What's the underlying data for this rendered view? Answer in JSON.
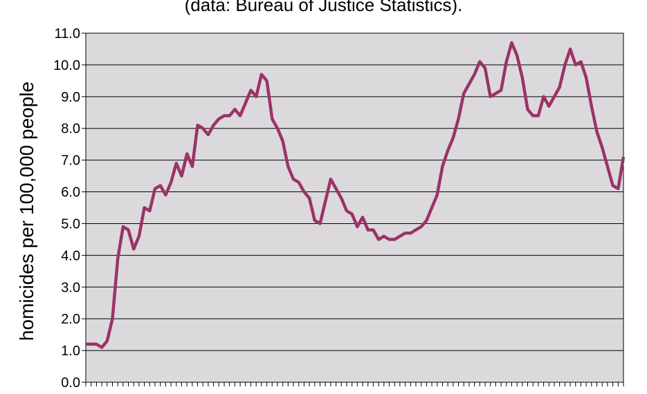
{
  "subtitle": "(data: Bureau of Justice Statistics).",
  "chart_data": {
    "type": "line",
    "title": "",
    "subtitle": "(data: Bureau of Justice Statistics).",
    "xlabel": "",
    "ylabel": "homicides per 100,000 people",
    "ylim": [
      0,
      11
    ],
    "yticks": [
      "0.0",
      "1.0",
      "2.0",
      "3.0",
      "4.0",
      "5.0",
      "6.0",
      "7.0",
      "8.0",
      "9.0",
      "10.0",
      "11.0"
    ],
    "grid": true,
    "legend": "none",
    "background_color": "#dcd9dc",
    "line_color": "#9b3368",
    "series": [
      {
        "values": [
          1.2,
          1.2,
          1.2,
          1.1,
          1.3,
          2.0,
          3.9,
          4.9,
          4.8,
          4.2,
          4.6,
          5.5,
          5.4,
          6.1,
          6.2,
          5.9,
          6.3,
          6.9,
          6.5,
          7.2,
          6.8,
          8.1,
          8.0,
          7.8,
          8.1,
          8.3,
          8.4,
          8.4,
          8.6,
          8.4,
          8.8,
          9.2,
          9.0,
          9.7,
          9.5,
          8.3,
          8.0,
          7.6,
          6.8,
          6.4,
          6.3,
          6.0,
          5.8,
          5.1,
          5.0,
          5.7,
          6.4,
          6.1,
          5.8,
          5.4,
          5.3,
          4.9,
          5.2,
          4.8,
          4.8,
          4.5,
          4.6,
          4.5,
          4.5,
          4.6,
          4.7,
          4.7,
          4.8,
          4.9,
          5.1,
          5.5,
          5.9,
          6.8,
          7.3,
          7.7,
          8.3,
          9.1,
          9.4,
          9.7,
          10.1,
          9.9,
          9.0,
          9.1,
          9.2,
          10.1,
          10.7,
          10.3,
          9.6,
          8.6,
          8.4,
          8.4,
          9.0,
          8.7,
          9.0,
          9.3,
          10.0,
          10.5,
          10.0,
          10.1,
          9.6,
          8.7,
          7.9,
          7.4,
          6.8,
          6.2,
          6.1,
          7.1
        ]
      }
    ]
  }
}
